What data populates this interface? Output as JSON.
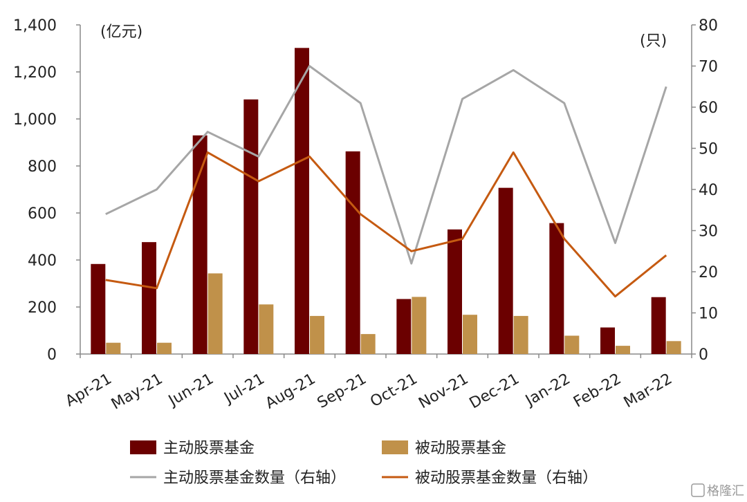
{
  "chart_data": {
    "type": "bar",
    "categories": [
      "Apr-21",
      "May-21",
      "Jun-21",
      "Jul-21",
      "Aug-21",
      "Sep-21",
      "Oct-21",
      "Nov-21",
      "Dec-21",
      "Jan-22",
      "Feb-22",
      "Mar-22"
    ],
    "left_axis": {
      "unit": "(亿元)",
      "ylim": [
        0,
        1400
      ],
      "ticks": [
        0,
        200,
        400,
        600,
        800,
        1000,
        1200,
        1400
      ],
      "tick_labels": [
        "0",
        "200",
        "400",
        "600",
        "800",
        "1,000",
        "1,200",
        "1,400"
      ]
    },
    "right_axis": {
      "unit": "(只)",
      "ylim": [
        0,
        80
      ],
      "ticks": [
        0,
        10,
        20,
        30,
        40,
        50,
        60,
        70,
        80
      ],
      "tick_labels": [
        "0",
        "10",
        "20",
        "30",
        "40",
        "50",
        "60",
        "70",
        "80"
      ]
    },
    "series": [
      {
        "name": "主动股票基金",
        "kind": "bar",
        "axis": "left",
        "color": "#6b0000",
        "values": [
          383,
          476,
          930,
          1083,
          1302,
          862,
          234,
          530,
          707,
          557,
          113,
          242
        ]
      },
      {
        "name": "被动股票基金",
        "kind": "bar",
        "axis": "left",
        "color": "#c0914a",
        "values": [
          48,
          48,
          343,
          211,
          162,
          85,
          243,
          167,
          162,
          78,
          35,
          55
        ]
      },
      {
        "name": "主动股票基金数量（右轴）",
        "kind": "line",
        "axis": "right",
        "color": "#a6a6a6",
        "values": [
          34,
          40,
          54,
          48,
          70,
          61,
          22,
          62,
          69,
          61,
          27,
          65
        ]
      },
      {
        "name": "被动股票基金数量（右轴）",
        "kind": "line",
        "axis": "right",
        "color": "#c55a11",
        "values": [
          18,
          16,
          49,
          42,
          48,
          34,
          25,
          28,
          49,
          28,
          14,
          24
        ]
      }
    ],
    "legend_position": "bottom",
    "grid": false
  },
  "watermark": "格隆汇"
}
